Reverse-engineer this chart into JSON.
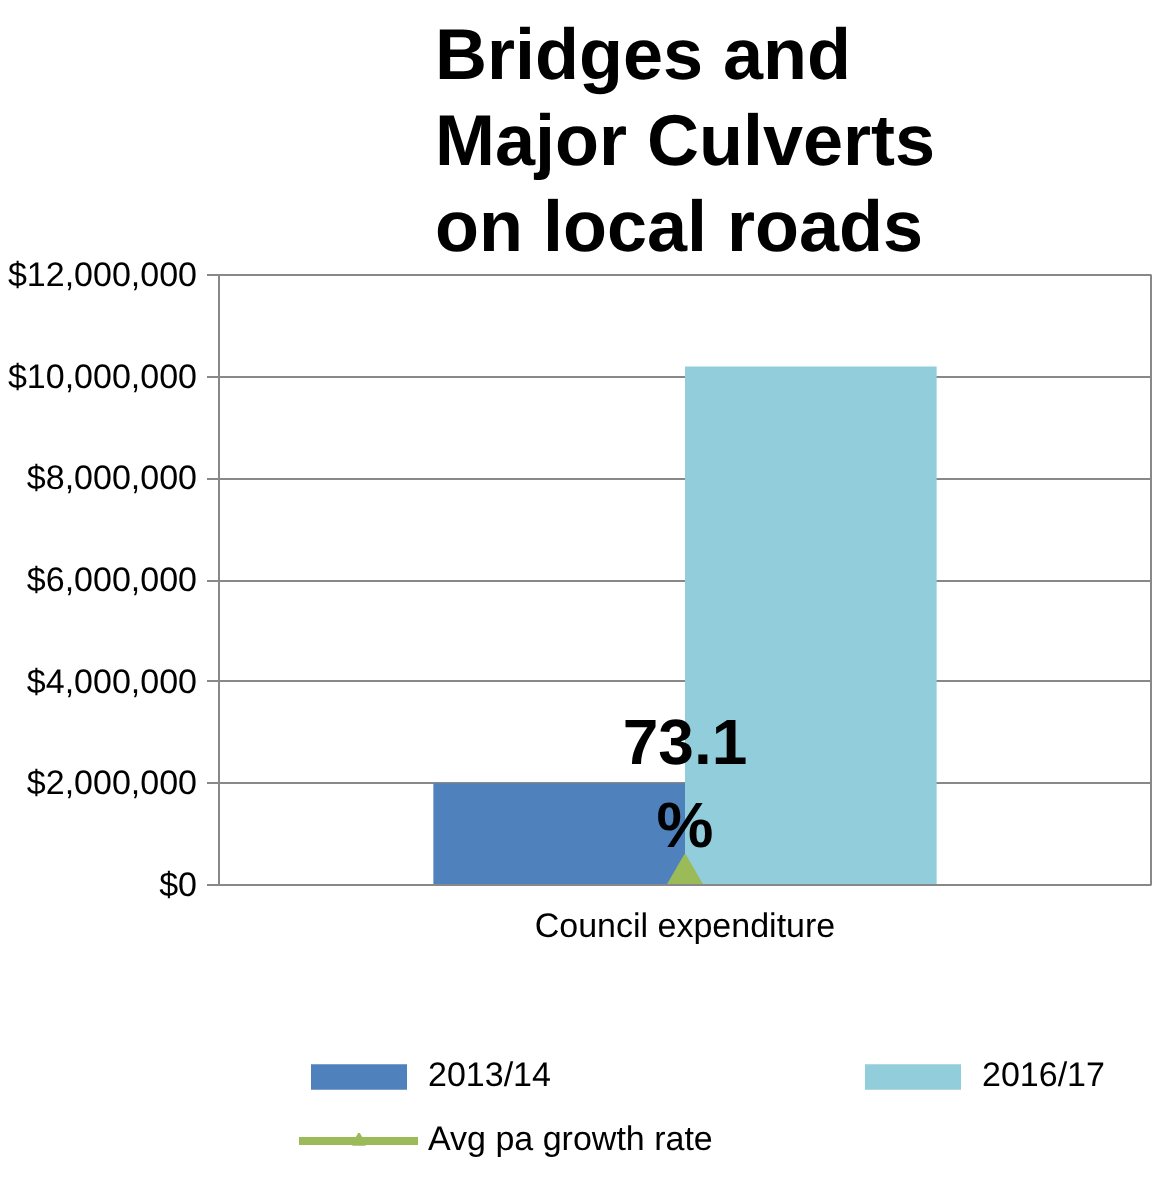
{
  "chart_data": {
    "type": "bar",
    "title": "Bridges and Major Culverts on local roads",
    "categories": [
      "Council expenditure"
    ],
    "series": [
      {
        "name": "2013/14",
        "type": "bar",
        "color": "#4f81bd",
        "values": [
          2000000
        ]
      },
      {
        "name": "2016/17",
        "type": "bar",
        "color": "#92cddc",
        "values": [
          10200000
        ]
      },
      {
        "name": "Avg pa growth rate",
        "type": "line",
        "color": "#9bbb59",
        "marker": "triangle",
        "values": [
          73.1
        ],
        "value_labels": [
          "73.1 %"
        ]
      }
    ],
    "ylim": [
      0,
      12000000
    ],
    "yticks": [
      {
        "value": 0,
        "label": "$0"
      },
      {
        "value": 2000000,
        "label": "$2,000,000"
      },
      {
        "value": 4000000,
        "label": "$4,000,000"
      },
      {
        "value": 6000000,
        "label": "$6,000,000"
      },
      {
        "value": 8000000,
        "label": "$8,000,000"
      },
      {
        "value": 10000000,
        "label": "$10,000,000"
      },
      {
        "value": 12000000,
        "label": "$12,000,000"
      }
    ],
    "grid": "y",
    "legend": "bottom"
  }
}
